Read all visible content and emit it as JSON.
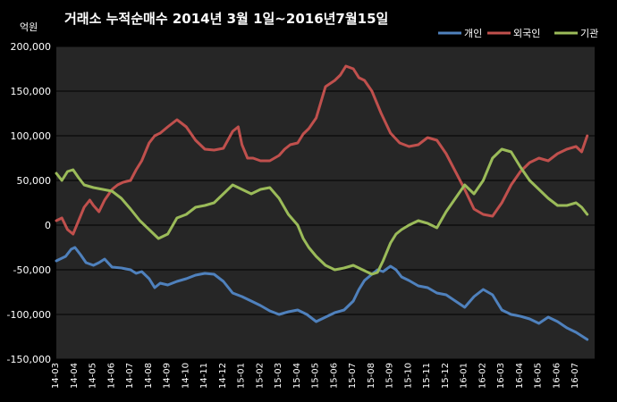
{
  "chart_data": {
    "type": "line",
    "title": "거래소  누적순매수 2014년 3월 1일~2016년7월15일",
    "ylabel": "억원",
    "xlabel": "",
    "ylim": [
      -150000,
      200000
    ],
    "yticks": [
      200000,
      150000,
      100000,
      50000,
      0,
      -50000,
      -100000,
      -150000
    ],
    "ytick_labels": [
      "200,000",
      "150,000",
      "100,000",
      "50,000",
      "0",
      "-50,000",
      "-100,000",
      "-150,000"
    ],
    "categories": [
      "14-03",
      "14-04",
      "14-05",
      "14-06",
      "14-07",
      "14-08",
      "14-09",
      "14-10",
      "14-11",
      "14-12",
      "15-01",
      "15-02",
      "15-03",
      "15-04",
      "15-05",
      "15-06",
      "15-07",
      "15-08",
      "15-09",
      "15-10",
      "15-11",
      "15-12",
      "16-01",
      "16-02",
      "16-03",
      "16-04",
      "16-05",
      "16-06",
      "16-07"
    ],
    "grid": true,
    "legend": "top-right",
    "background": "#000000",
    "series": [
      {
        "name": "개인",
        "color": "#4F81BD",
        "x": [
          0,
          0.5,
          0.8,
          1,
          1.3,
          1.6,
          2,
          2.3,
          2.6,
          3,
          3.5,
          4,
          4.3,
          4.6,
          5,
          5.3,
          5.6,
          6,
          6.5,
          7,
          7.5,
          8,
          8.5,
          9,
          9.5,
          10,
          10.5,
          11,
          11.5,
          12,
          12.5,
          13,
          13.5,
          14,
          14.5,
          15,
          15.5,
          16,
          16.3,
          16.6,
          17,
          17.3,
          17.6,
          18,
          18.3,
          18.6,
          19,
          19.5,
          20,
          20.5,
          21,
          21.5,
          22,
          22.5,
          23,
          23.5,
          24,
          24.5,
          25,
          25.5,
          26,
          26.5,
          27,
          27.5,
          28,
          28.6
        ],
        "y": [
          -40000,
          -35000,
          -27000,
          -25000,
          -33000,
          -42000,
          -45000,
          -42000,
          -38000,
          -47000,
          -48000,
          -50000,
          -54000,
          -52000,
          -60000,
          -70000,
          -65000,
          -67000,
          -63000,
          -60000,
          -56000,
          -54000,
          -55000,
          -63000,
          -76000,
          -80000,
          -85000,
          -90000,
          -96000,
          -100000,
          -97000,
          -95000,
          -100000,
          -108000,
          -103000,
          -98000,
          -95000,
          -85000,
          -72000,
          -62000,
          -55000,
          -50000,
          -52000,
          -46000,
          -50000,
          -58000,
          -62000,
          -68000,
          -70000,
          -76000,
          -78000,
          -85000,
          -92000,
          -80000,
          -72000,
          -78000,
          -95000,
          -100000,
          -102000,
          -105000,
          -110000,
          -103000,
          -108000,
          -115000,
          -120000,
          -128000
        ]
      },
      {
        "name": "외국인",
        "color": "#C0504D",
        "x": [
          0,
          0.3,
          0.6,
          0.9,
          1.2,
          1.5,
          1.8,
          2,
          2.3,
          2.6,
          3,
          3.3,
          3.6,
          4,
          4.3,
          4.6,
          5,
          5.3,
          5.6,
          6,
          6.5,
          7,
          7.5,
          8,
          8.5,
          9,
          9.5,
          9.8,
          10,
          10.3,
          10.6,
          11,
          11.5,
          12,
          12.3,
          12.6,
          13,
          13.3,
          13.6,
          14,
          14.5,
          15,
          15.3,
          15.6,
          16,
          16.3,
          16.6,
          17,
          17.5,
          18,
          18.5,
          19,
          19.5,
          20,
          20.5,
          21,
          21.5,
          22,
          22.5,
          23,
          23.5,
          24,
          24.5,
          25,
          25.5,
          26,
          26.5,
          27,
          27.5,
          28,
          28.3,
          28.6
        ],
        "y": [
          5000,
          8000,
          -5000,
          -10000,
          5000,
          20000,
          28000,
          22000,
          15000,
          28000,
          40000,
          45000,
          48000,
          50000,
          62000,
          72000,
          92000,
          100000,
          103000,
          110000,
          118000,
          110000,
          95000,
          85000,
          84000,
          86000,
          105000,
          110000,
          90000,
          75000,
          75000,
          72000,
          72000,
          78000,
          85000,
          90000,
          92000,
          102000,
          108000,
          120000,
          155000,
          162000,
          168000,
          178000,
          175000,
          165000,
          162000,
          150000,
          125000,
          103000,
          92000,
          88000,
          90000,
          98000,
          95000,
          80000,
          60000,
          40000,
          18000,
          12000,
          10000,
          25000,
          45000,
          60000,
          70000,
          75000,
          72000,
          80000,
          85000,
          88000,
          82000,
          100000
        ]
      },
      {
        "name": "기관",
        "color": "#9BBB59",
        "x": [
          0,
          0.3,
          0.6,
          0.9,
          1.2,
          1.5,
          2,
          2.5,
          3,
          3.5,
          4,
          4.5,
          5,
          5.5,
          6,
          6.5,
          7,
          7.5,
          8,
          8.5,
          9,
          9.5,
          10,
          10.5,
          11,
          11.5,
          12,
          12.5,
          13,
          13.3,
          13.6,
          14,
          14.5,
          15,
          15.5,
          16,
          16.5,
          17,
          17.3,
          17.6,
          18,
          18.3,
          18.6,
          19,
          19.5,
          20,
          20.5,
          21,
          21.5,
          22,
          22.5,
          23,
          23.5,
          24,
          24.5,
          25,
          25.5,
          26,
          26.5,
          27,
          27.5,
          28,
          28.3,
          28.6
        ],
        "y": [
          58000,
          50000,
          60000,
          62000,
          53000,
          45000,
          42000,
          40000,
          38000,
          30000,
          18000,
          5000,
          -5000,
          -15000,
          -10000,
          8000,
          12000,
          20000,
          22000,
          25000,
          35000,
          45000,
          40000,
          35000,
          40000,
          42000,
          30000,
          12000,
          0,
          -15000,
          -25000,
          -35000,
          -45000,
          -50000,
          -48000,
          -45000,
          -50000,
          -55000,
          -53000,
          -40000,
          -20000,
          -10000,
          -5000,
          0,
          5000,
          2000,
          -3000,
          15000,
          30000,
          45000,
          35000,
          50000,
          75000,
          85000,
          82000,
          65000,
          50000,
          40000,
          30000,
          22000,
          22000,
          25000,
          20000,
          12000
        ]
      }
    ]
  }
}
